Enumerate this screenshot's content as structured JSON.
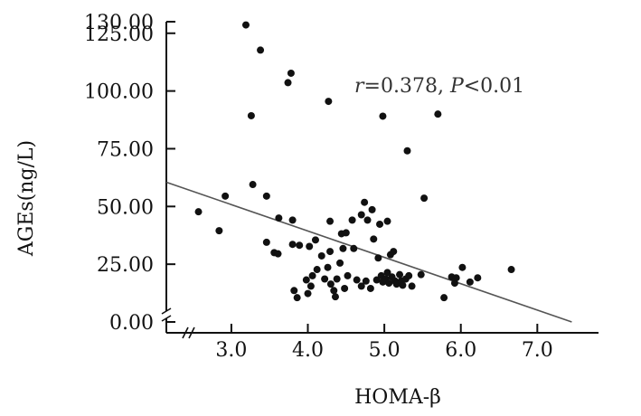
{
  "chart_data": {
    "type": "scatter",
    "xlabel": "HOMA-β",
    "ylabel": "AGEs(ng/L)",
    "xlim": [
      2.15,
      7.8
    ],
    "ylim": [
      0,
      130
    ],
    "x_ticks": [
      3.0,
      4.0,
      5.0,
      6.0,
      7.0
    ],
    "x_tick_labels": [
      "3.0",
      "4.0",
      "5.0",
      "6.0",
      "7.0"
    ],
    "y_ticks": [
      0,
      25,
      50,
      75,
      100,
      125,
      130
    ],
    "y_tick_labels": [
      "0.00",
      "25.00",
      "50.00",
      "75.00",
      "100.00",
      "125.00",
      "130.00"
    ],
    "axis_break": "y",
    "annotation": {
      "r_symbol": "r",
      "r_text": "=0.378, ",
      "p_symbol": "P",
      "p_text": "<0.01"
    },
    "trendline": {
      "x": [
        2.15,
        7.45
      ],
      "y": [
        60.5,
        0
      ]
    },
    "points": [
      {
        "x": 2.57,
        "y": 47.7
      },
      {
        "x": 2.84,
        "y": 39.5
      },
      {
        "x": 2.92,
        "y": 54.5
      },
      {
        "x": 3.19,
        "y": 128.6
      },
      {
        "x": 3.26,
        "y": 89.3
      },
      {
        "x": 3.28,
        "y": 59.5
      },
      {
        "x": 3.38,
        "y": 117.7
      },
      {
        "x": 3.46,
        "y": 54.5
      },
      {
        "x": 3.46,
        "y": 34.5
      },
      {
        "x": 3.56,
        "y": 30.0
      },
      {
        "x": 3.61,
        "y": 29.5
      },
      {
        "x": 3.62,
        "y": 45.0
      },
      {
        "x": 3.74,
        "y": 103.6
      },
      {
        "x": 3.78,
        "y": 107.7
      },
      {
        "x": 3.8,
        "y": 44.1
      },
      {
        "x": 3.8,
        "y": 33.6
      },
      {
        "x": 3.82,
        "y": 13.6
      },
      {
        "x": 3.86,
        "y": 10.5
      },
      {
        "x": 3.89,
        "y": 33.2
      },
      {
        "x": 3.98,
        "y": 18.2
      },
      {
        "x": 4.0,
        "y": 12.3
      },
      {
        "x": 4.02,
        "y": 32.7
      },
      {
        "x": 4.04,
        "y": 15.5
      },
      {
        "x": 4.06,
        "y": 20.0
      },
      {
        "x": 4.1,
        "y": 35.5
      },
      {
        "x": 4.12,
        "y": 22.7
      },
      {
        "x": 4.18,
        "y": 28.6
      },
      {
        "x": 4.22,
        "y": 18.6
      },
      {
        "x": 4.26,
        "y": 23.6
      },
      {
        "x": 4.27,
        "y": 95.5
      },
      {
        "x": 4.29,
        "y": 43.6
      },
      {
        "x": 4.29,
        "y": 30.5
      },
      {
        "x": 4.3,
        "y": 16.4
      },
      {
        "x": 4.34,
        "y": 13.6
      },
      {
        "x": 4.36,
        "y": 10.9
      },
      {
        "x": 4.38,
        "y": 18.6
      },
      {
        "x": 4.42,
        "y": 25.5
      },
      {
        "x": 4.44,
        "y": 38.2
      },
      {
        "x": 4.46,
        "y": 31.8
      },
      {
        "x": 4.48,
        "y": 14.5
      },
      {
        "x": 4.5,
        "y": 38.6
      },
      {
        "x": 4.52,
        "y": 20.0
      },
      {
        "x": 4.58,
        "y": 44.1
      },
      {
        "x": 4.6,
        "y": 31.8
      },
      {
        "x": 4.64,
        "y": 18.2
      },
      {
        "x": 4.7,
        "y": 15.5
      },
      {
        "x": 4.7,
        "y": 46.4
      },
      {
        "x": 4.74,
        "y": 51.8
      },
      {
        "x": 4.76,
        "y": 17.7
      },
      {
        "x": 4.78,
        "y": 44.1
      },
      {
        "x": 4.82,
        "y": 14.5
      },
      {
        "x": 4.84,
        "y": 48.6
      },
      {
        "x": 4.86,
        "y": 35.9
      },
      {
        "x": 4.9,
        "y": 18.2
      },
      {
        "x": 4.92,
        "y": 27.7
      },
      {
        "x": 4.94,
        "y": 42.3
      },
      {
        "x": 4.96,
        "y": 20.0
      },
      {
        "x": 4.98,
        "y": 89.1
      },
      {
        "x": 4.98,
        "y": 17.3
      },
      {
        "x": 5.02,
        "y": 18.6
      },
      {
        "x": 5.04,
        "y": 43.6
      },
      {
        "x": 5.04,
        "y": 21.4
      },
      {
        "x": 5.06,
        "y": 16.8
      },
      {
        "x": 5.08,
        "y": 29.1
      },
      {
        "x": 5.1,
        "y": 19.5
      },
      {
        "x": 5.12,
        "y": 30.5
      },
      {
        "x": 5.14,
        "y": 17.7
      },
      {
        "x": 5.16,
        "y": 16.4
      },
      {
        "x": 5.2,
        "y": 20.5
      },
      {
        "x": 5.22,
        "y": 17.7
      },
      {
        "x": 5.24,
        "y": 15.9
      },
      {
        "x": 5.28,
        "y": 18.6
      },
      {
        "x": 5.3,
        "y": 74.1
      },
      {
        "x": 5.32,
        "y": 20.0
      },
      {
        "x": 5.36,
        "y": 15.5
      },
      {
        "x": 5.48,
        "y": 20.5
      },
      {
        "x": 5.52,
        "y": 53.6
      },
      {
        "x": 5.7,
        "y": 90.0
      },
      {
        "x": 5.78,
        "y": 10.5
      },
      {
        "x": 5.88,
        "y": 19.5
      },
      {
        "x": 5.92,
        "y": 16.8
      },
      {
        "x": 5.94,
        "y": 19.1
      },
      {
        "x": 6.02,
        "y": 23.6
      },
      {
        "x": 6.12,
        "y": 17.3
      },
      {
        "x": 6.22,
        "y": 19.1
      },
      {
        "x": 6.66,
        "y": 22.7
      }
    ]
  }
}
